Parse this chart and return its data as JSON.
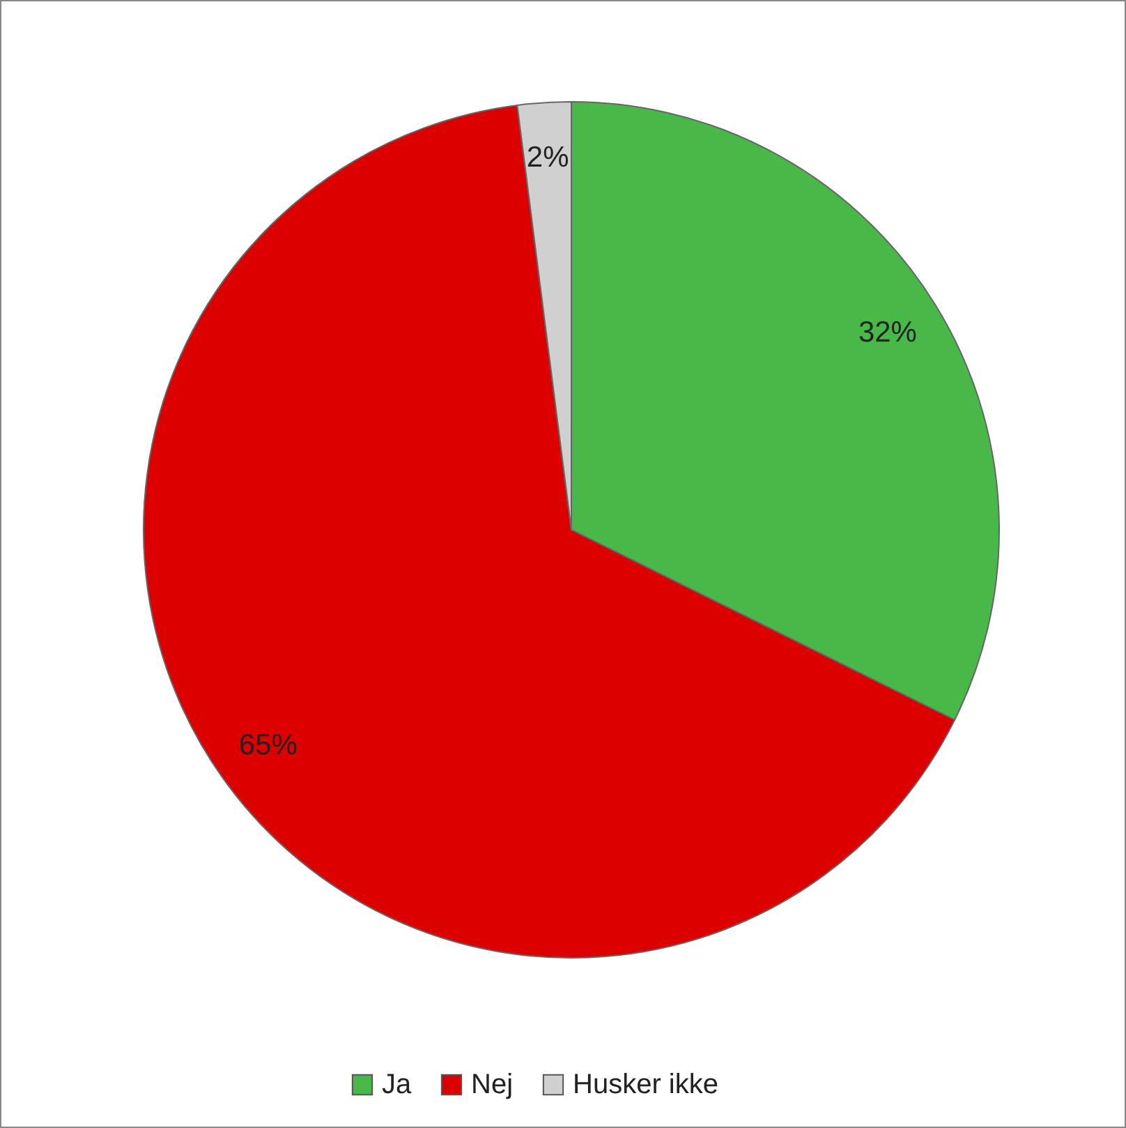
{
  "chart_data": {
    "type": "pie",
    "categories": [
      "Ja",
      "Nej",
      "Husker ikke"
    ],
    "values": [
      32,
      65,
      2
    ],
    "value_labels": [
      "32%",
      "65%",
      "2%"
    ],
    "colors": [
      "#48b848",
      "#dd0000",
      "#d0d0d0"
    ],
    "legend": "bottom"
  }
}
